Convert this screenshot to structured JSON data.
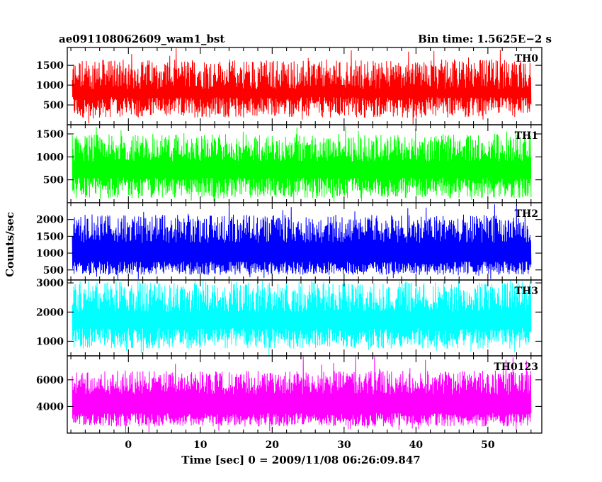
{
  "header": {
    "left_title": "ae091108062609_wam1_bst",
    "right_title": "Bin time: 1.5625E−2 s"
  },
  "ylabel": "Counts/sec",
  "xlabel": "Time [sec] 0 = 2009/11/08 06:26:09.847",
  "chart_data": [
    {
      "type": "line",
      "name": "TH0",
      "color": "#ff0000",
      "xlim": [
        -8.5,
        57.5
      ],
      "ylim": [
        0,
        1950
      ],
      "yticks": [
        500,
        1000,
        1500
      ],
      "x_range": [
        -7.8,
        56.0
      ],
      "level_range": [
        180,
        700
      ],
      "peak_range": [
        900,
        1650
      ],
      "x": [
        -8,
        0,
        8,
        16,
        24,
        32,
        40,
        48,
        56
      ],
      "y_peak_envelope": [
        1500,
        1550,
        1600,
        1650,
        1600,
        1550,
        1550,
        1600,
        1600
      ],
      "y_floor_envelope": [
        200,
        180,
        220,
        200,
        180,
        200,
        190,
        210,
        200
      ]
    },
    {
      "type": "line",
      "name": "TH1",
      "color": "#00ff00",
      "xlim": [
        -8.5,
        57.5
      ],
      "ylim": [
        0,
        1700
      ],
      "yticks": [
        500,
        1000,
        1500
      ],
      "x_range": [
        -7.8,
        56.0
      ],
      "level_range": [
        100,
        550
      ],
      "peak_range": [
        900,
        1500
      ],
      "x": [
        -8,
        0,
        8,
        16,
        24,
        32,
        40,
        48,
        56
      ],
      "y_peak_envelope": [
        1500,
        1500,
        1550,
        1550,
        1500,
        1550,
        1500,
        1500,
        1550
      ],
      "y_floor_envelope": [
        100,
        120,
        100,
        110,
        100,
        110,
        100,
        120,
        100
      ]
    },
    {
      "type": "line",
      "name": "TH2",
      "color": "#0000ff",
      "xlim": [
        -8.5,
        57.5
      ],
      "ylim": [
        200,
        2500
      ],
      "yticks": [
        500,
        1000,
        1500,
        2000
      ],
      "x_range": [
        -7.8,
        56.0
      ],
      "level_range": [
        350,
        750
      ],
      "peak_range": [
        1300,
        2150
      ],
      "x": [
        -8,
        0,
        8,
        16,
        24,
        32,
        40,
        48,
        56
      ],
      "y_peak_envelope": [
        2100,
        2200,
        2300,
        2400,
        2300,
        2400,
        2300,
        2300,
        2200
      ],
      "y_floor_envelope": [
        350,
        300,
        320,
        330,
        300,
        320,
        330,
        300,
        330
      ]
    },
    {
      "type": "line",
      "name": "TH3",
      "color": "#00ffff",
      "xlim": [
        -8.5,
        57.5
      ],
      "ylim": [
        500,
        3100
      ],
      "yticks": [
        1000,
        2000,
        3000
      ],
      "x_range": [
        -7.8,
        56.0
      ],
      "level_range": [
        750,
        1450
      ],
      "peak_range": [
        2000,
        3050
      ],
      "x": [
        -8,
        0,
        8,
        16,
        24,
        32,
        40,
        48,
        56
      ],
      "y_peak_envelope": [
        3000,
        3000,
        3000,
        3050,
        3000,
        3050,
        3000,
        3000,
        3000
      ],
      "y_floor_envelope": [
        700,
        650,
        700,
        680,
        650,
        700,
        660,
        700,
        680
      ]
    },
    {
      "type": "line",
      "name": "TH0123",
      "color": "#ff00ff",
      "xlim": [
        -8.5,
        57.5
      ],
      "ylim": [
        2000,
        7800
      ],
      "yticks": [
        4000,
        6000
      ],
      "x_range": [
        -7.8,
        56.0
      ],
      "level_range": [
        2500,
        3500
      ],
      "peak_range": [
        4900,
        6700
      ],
      "xticks": [
        0,
        10,
        20,
        30,
        40,
        50
      ],
      "x": [
        -8,
        0,
        8,
        16,
        24,
        32,
        40,
        48,
        56
      ],
      "y_peak_envelope": [
        6800,
        7000,
        7100,
        7300,
        7200,
        7100,
        7300,
        7200,
        7000
      ],
      "y_floor_envelope": [
        2400,
        2300,
        2350,
        2300,
        2400,
        2300,
        2350,
        2300,
        2400
      ]
    }
  ]
}
